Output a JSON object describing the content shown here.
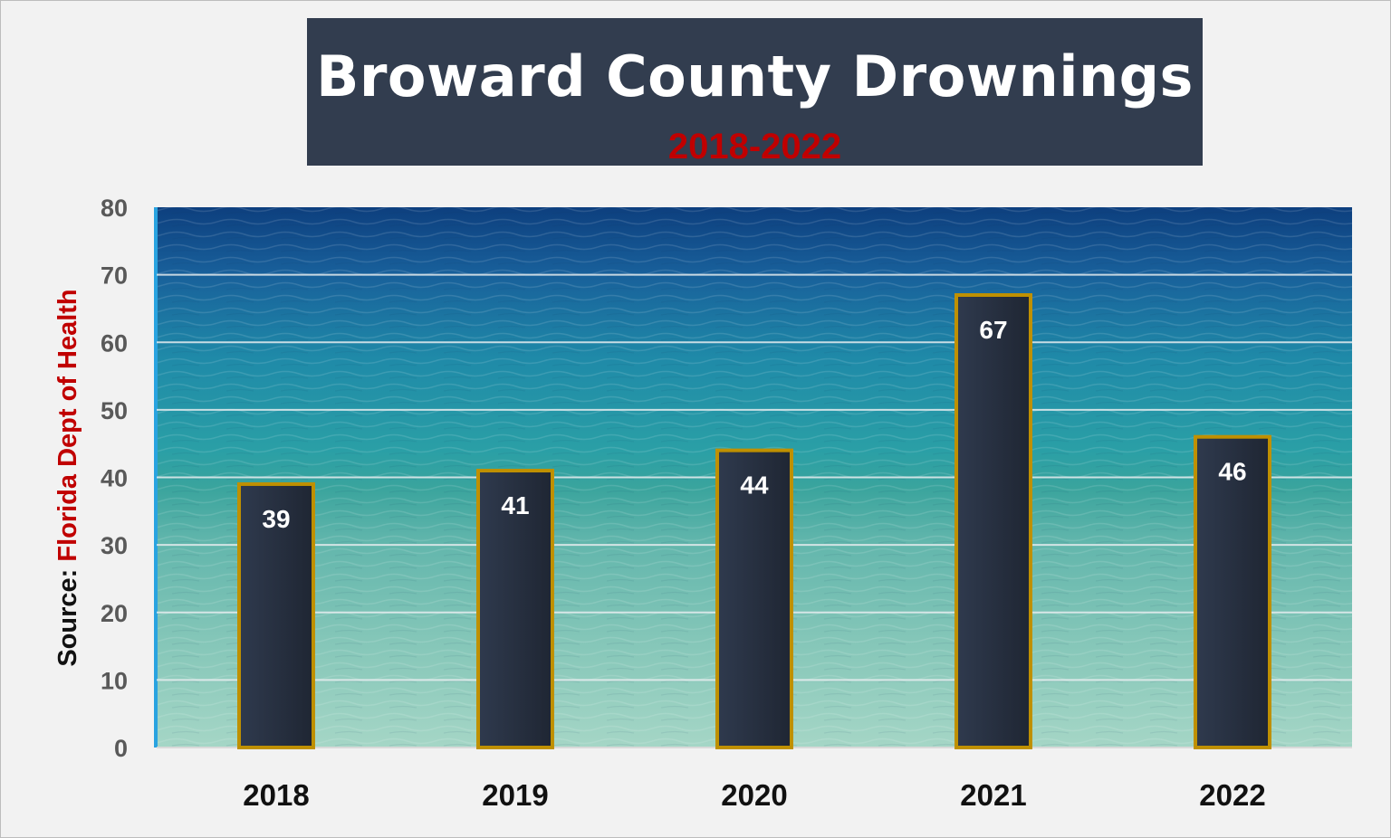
{
  "chart_data": {
    "type": "bar",
    "title": "Broward County Drownings",
    "subtitle": "2018-2022",
    "ylabel_prefix": "Source: ",
    "ylabel_source": "Florida Dept of Health",
    "categories": [
      "2018",
      "2019",
      "2020",
      "2021",
      "2022"
    ],
    "values": [
      39,
      41,
      44,
      67,
      46
    ],
    "ylim": [
      0,
      80
    ],
    "yticks": [
      0,
      10,
      20,
      30,
      40,
      50,
      60,
      70,
      80
    ],
    "grid": true,
    "legend": "none",
    "colors": {
      "bar_fill": "#28303f",
      "bar_border": "#bf9000",
      "water_top": "#0d4a8a",
      "water_bottom": "#9fd3c6",
      "title_bg": "#323d4f",
      "subtitle": "#c00000"
    }
  }
}
